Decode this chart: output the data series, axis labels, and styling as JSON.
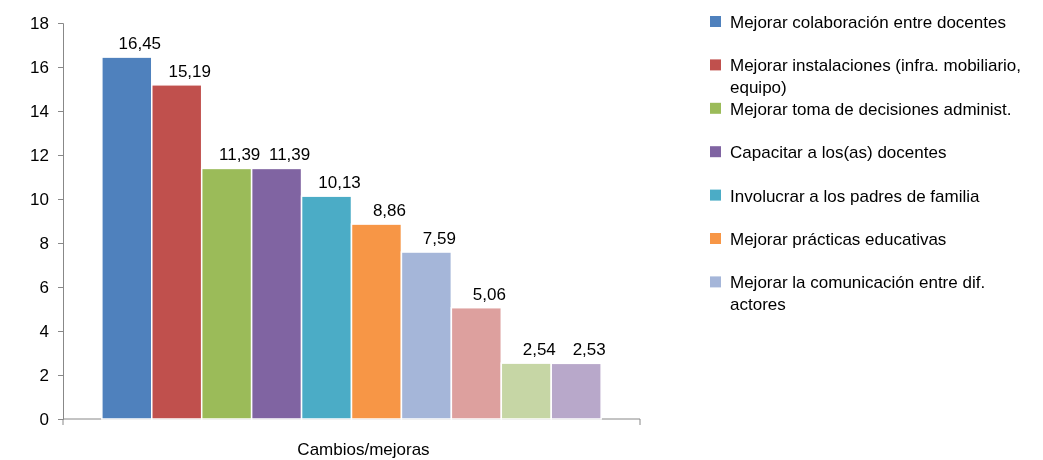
{
  "chart_data": {
    "type": "bar",
    "xlabel": "Cambios/mejoras",
    "categories": [
      null
    ],
    "ylim": [
      0,
      18
    ],
    "yticks": [
      0,
      2,
      4,
      6,
      8,
      10,
      12,
      14,
      16,
      18
    ],
    "legend": "right",
    "series": [
      {
        "name": "Mejorar colaboración entre docentes",
        "color": "#4f81bd",
        "values": [
          16.45
        ],
        "value_labels": [
          "16,45"
        ]
      },
      {
        "name": "Mejorar instalaciones (infra. mobiliario, equipo)",
        "color": "#c0504d",
        "values": [
          15.19
        ],
        "value_labels": [
          "15,19"
        ]
      },
      {
        "name": "Mejorar toma de decisiones administ.",
        "color": "#9bbb59",
        "values": [
          11.39
        ],
        "value_labels": [
          "11,39"
        ]
      },
      {
        "name": "Capacitar a los(as) docentes",
        "color": "#8064a2",
        "values": [
          11.39
        ],
        "value_labels": [
          "11,39"
        ]
      },
      {
        "name": "Involucrar a los padres de familia",
        "color": "#4bacc6",
        "values": [
          10.13
        ],
        "value_labels": [
          "10,13"
        ]
      },
      {
        "name": "Mejorar prácticas educativas",
        "color": "#f79646",
        "values": [
          8.86
        ],
        "value_labels": [
          "8,86"
        ]
      },
      {
        "name": "Mejorar la comunicación entre dif. actores",
        "color": "#a5b6d9",
        "values": [
          7.59
        ],
        "value_labels": [
          "7,59"
        ]
      },
      {
        "color": "#dda09e",
        "values": [
          5.06
        ],
        "value_labels": [
          "5,06"
        ]
      },
      {
        "color": "#c6d6a5",
        "values": [
          2.54
        ],
        "value_labels": [
          "2,54"
        ]
      },
      {
        "color": "#b8a8ca",
        "values": [
          2.53
        ],
        "value_labels": [
          "2,53"
        ]
      }
    ]
  }
}
